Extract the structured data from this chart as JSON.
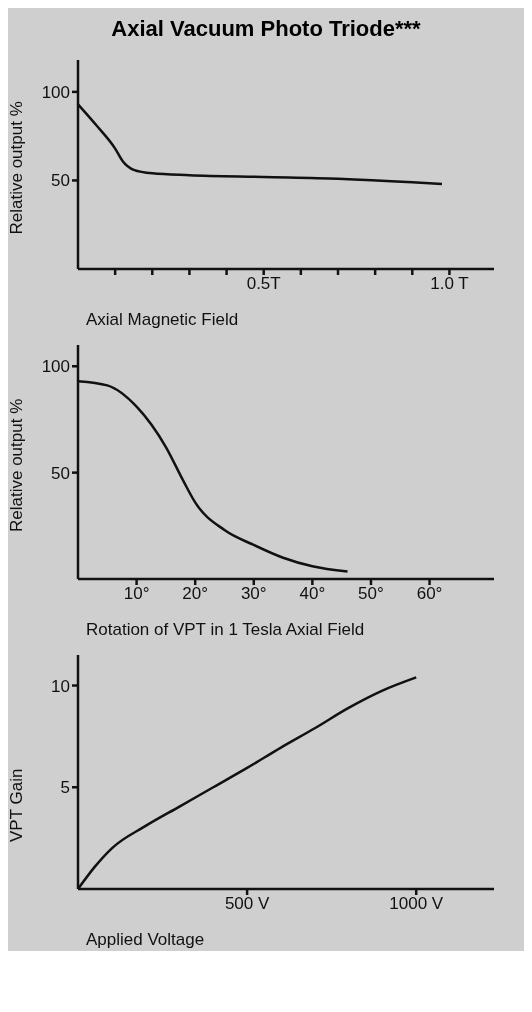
{
  "chart_data": [
    {
      "type": "line",
      "title": "Axial Vacuum Photo Triode***",
      "xlabel": "Axial Magnetic Field",
      "ylabel": "Relative output %",
      "x": [
        0,
        0.05,
        0.1,
        0.12,
        0.15,
        0.2,
        0.3,
        0.5,
        0.7,
        0.9,
        0.98
      ],
      "series": [
        {
          "color": "#111111",
          "values": [
            93,
            81,
            68,
            61,
            56,
            54,
            53,
            52,
            51,
            49,
            48
          ]
        }
      ],
      "xlim": [
        0,
        1.12
      ],
      "ylim": [
        0,
        118
      ],
      "xticks": [
        {
          "value": 0.1,
          "label": null
        },
        {
          "value": 0.2,
          "label": null
        },
        {
          "value": 0.3,
          "label": null
        },
        {
          "value": 0.4,
          "label": null
        },
        {
          "value": 0.5,
          "label": "0.5T"
        },
        {
          "value": 0.6,
          "label": null
        },
        {
          "value": 0.7,
          "label": null
        },
        {
          "value": 0.8,
          "label": null
        },
        {
          "value": 0.9,
          "label": null
        },
        {
          "value": 1.0,
          "label": "1.0 T"
        }
      ],
      "yticks": [
        50,
        100
      ]
    },
    {
      "type": "line",
      "xlabel": "Rotation of VPT in 1 Tesla Axial Field",
      "ylabel": "Relative output %",
      "x": [
        0,
        5,
        10,
        15,
        18,
        20,
        25,
        30,
        35,
        40,
        46
      ],
      "series": [
        {
          "color": "#111111",
          "values": [
            93,
            91,
            81,
            62,
            46,
            36,
            23,
            16,
            10,
            6,
            3.5
          ]
        }
      ],
      "xlim": [
        0,
        71
      ],
      "ylim": [
        0,
        110
      ],
      "xticks": [
        {
          "value": 10,
          "label": "10°"
        },
        {
          "value": 20,
          "label": "20°"
        },
        {
          "value": 30,
          "label": "30°"
        },
        {
          "value": 40,
          "label": "40°"
        },
        {
          "value": 50,
          "label": "50°"
        },
        {
          "value": 60,
          "label": "60°"
        }
      ],
      "yticks": [
        50,
        100
      ]
    },
    {
      "type": "line",
      "xlabel": "Applied Voltage",
      "ylabel": "VPT Gain",
      "x": [
        0,
        50,
        100,
        200,
        300,
        400,
        500,
        600,
        700,
        800,
        900,
        1000
      ],
      "series": [
        {
          "color": "#111111",
          "values": [
            0,
            1.1,
            2.0,
            3.1,
            4.05,
            5.0,
            5.95,
            6.95,
            7.9,
            8.9,
            9.75,
            10.4
          ]
        }
      ],
      "xlim": [
        0,
        1230
      ],
      "ylim": [
        0,
        11.5
      ],
      "xticks": [
        {
          "value": 500,
          "label": "500 V"
        },
        {
          "value": 1000,
          "label": "1000 V"
        }
      ],
      "yticks": [
        5,
        10
      ]
    }
  ]
}
